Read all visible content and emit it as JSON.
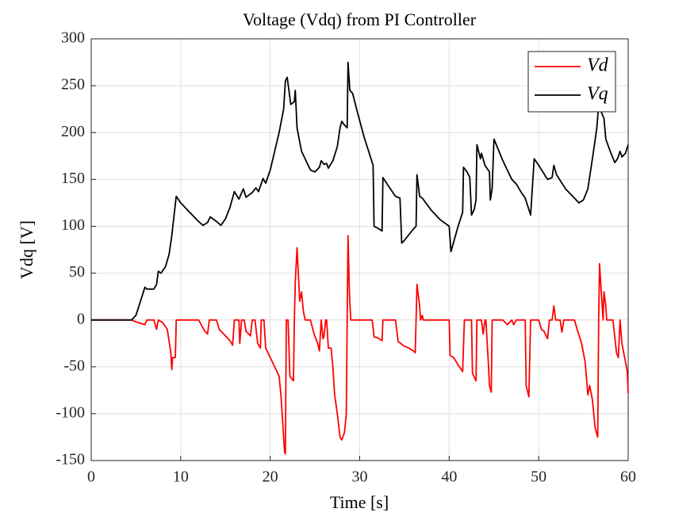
{
  "chart_data": {
    "type": "line",
    "title": "Voltage (Vdq) from PI Controller",
    "xlabel": "Time [s]",
    "ylabel": "Vdq [V]",
    "xlim": [
      0,
      60
    ],
    "xticks": [
      0,
      10,
      20,
      30,
      40,
      50,
      60
    ],
    "ylim": [
      -150,
      300
    ],
    "yticks": [
      -150,
      -100,
      -50,
      0,
      50,
      100,
      150,
      200,
      250,
      300
    ],
    "grid": true,
    "legend": "top-right",
    "series": [
      {
        "name": "Vd",
        "color": "#ff0000",
        "x": [
          0,
          4.5,
          5,
          6,
          6.2,
          7,
          7.3,
          7.5,
          8,
          8.5,
          8.9,
          9,
          9.1,
          9.4,
          9.5,
          12,
          12.7,
          13,
          13.2,
          14,
          14.3,
          15,
          15.5,
          15.8,
          16,
          16.5,
          16.6,
          16.8,
          17.1,
          17.3,
          17.8,
          18,
          18.3,
          18.6,
          18.9,
          19,
          19.3,
          19.5,
          20,
          20.5,
          21,
          21.2,
          21.4,
          21.6,
          21.7,
          21.8,
          22,
          22.2,
          22.6,
          22.7,
          22.8,
          23,
          23.3,
          23.5,
          23.7,
          23.9,
          24.5,
          24.9,
          25.3,
          25.5,
          25.7,
          25.9,
          26,
          26.2,
          26.3,
          26.5,
          26.8,
          27,
          27.2,
          27.5,
          27.8,
          28,
          28.3,
          28.5,
          28.6,
          28.7,
          28.85,
          29,
          31.4,
          31.6,
          32,
          32.5,
          32.6,
          34,
          34.3,
          35,
          35.5,
          36,
          36.2,
          36.3,
          36.4,
          36.7,
          36.8,
          37,
          37.1,
          40,
          40.1,
          40.5,
          41,
          41.5,
          41.7,
          42.5,
          42.6,
          43,
          43.1,
          43.6,
          43.8,
          44,
          44.1,
          44.4,
          44.5,
          44.7,
          44.8,
          46,
          46.5,
          47,
          47.2,
          47.5,
          48.5,
          48.6,
          48.9,
          49.1,
          50,
          50.3,
          50.6,
          51,
          51.2,
          51.5,
          51.7,
          51.9,
          52.4,
          52.6,
          52.8,
          54,
          54.3,
          54.8,
          55.2,
          55.5,
          55.7,
          56,
          56.3,
          56.6,
          56.7,
          56.8,
          57,
          57.2,
          57.3,
          57.5,
          57.6,
          58.3,
          58.7,
          58.9,
          59.1,
          59.3,
          59.6,
          59.9,
          60
        ],
        "values": [
          0,
          0,
          -2,
          -5,
          0,
          0,
          -10,
          0,
          -3,
          -10,
          -35,
          -53,
          -40,
          -40,
          0,
          0,
          -12,
          -15,
          0,
          0,
          -10,
          -17,
          -22,
          -27,
          0,
          0,
          -25,
          0,
          0,
          -12,
          -17,
          0,
          0,
          -25,
          -30,
          0,
          0,
          -30,
          -40,
          -50,
          -60,
          -80,
          -110,
          -140,
          -143,
          0,
          0,
          -60,
          -65,
          0,
          40,
          77,
          20,
          30,
          10,
          0,
          0,
          -15,
          -25,
          -33,
          0,
          -20,
          -18,
          0,
          0,
          -30,
          -30,
          -50,
          -80,
          -100,
          -125,
          -128,
          -120,
          -100,
          0,
          90,
          30,
          0,
          0,
          -18,
          -19,
          -22,
          0,
          0,
          -23,
          -28,
          -30,
          -33,
          -35,
          0,
          38,
          15,
          0,
          5,
          0,
          0,
          -38,
          -40,
          -48,
          -55,
          0,
          0,
          -57,
          -65,
          0,
          0,
          -15,
          0,
          0,
          -50,
          -70,
          -77,
          0,
          0,
          -5,
          0,
          -5,
          0,
          0,
          -70,
          -82,
          0,
          0,
          -10,
          -12,
          -20,
          0,
          0,
          15,
          0,
          0,
          -13,
          0,
          0,
          -10,
          -25,
          -45,
          -80,
          -70,
          -85,
          -115,
          -125,
          0,
          60,
          30,
          0,
          30,
          15,
          0,
          0,
          -35,
          -40,
          0,
          -25,
          -40,
          -55,
          -78
        ]
      },
      {
        "name": "Vq",
        "color": "#000000",
        "x": [
          0,
          4.5,
          5,
          5.5,
          6,
          6.2,
          7,
          7.3,
          7.5,
          7.8,
          8.3,
          8.7,
          9,
          9.3,
          9.5,
          10,
          11,
          12,
          12.5,
          13,
          13.3,
          14,
          14.5,
          15,
          15.5,
          16,
          16.5,
          17,
          17.3,
          18,
          18.4,
          18.7,
          19.2,
          19.5,
          20,
          20.5,
          21,
          21.5,
          21.7,
          21.9,
          22.3,
          22.7,
          22.8,
          23,
          23.5,
          24,
          24.5,
          25,
          25.5,
          25.7,
          26,
          26.3,
          26.5,
          27,
          27.5,
          27.8,
          28,
          28.3,
          28.6,
          28.7,
          28.9,
          29.2,
          29.8,
          30.5,
          31,
          31.5,
          31.6,
          32,
          32.5,
          32.6,
          33,
          34,
          34.5,
          34.7,
          35,
          36,
          36.3,
          36.4,
          36.7,
          37,
          38,
          39,
          40,
          40.2,
          41,
          41.5,
          41.6,
          42,
          42.3,
          42.5,
          42.8,
          43,
          43.1,
          43.5,
          43.6,
          44,
          44.5,
          44.6,
          44.8,
          45,
          46,
          47,
          47.5,
          48,
          48.5,
          49,
          49.1,
          49.5,
          50,
          51,
          51.5,
          51.7,
          52,
          53,
          54,
          54.5,
          55,
          55.5,
          56,
          56.5,
          56.8,
          57,
          57.3,
          57.5,
          58,
          58.5,
          58.8,
          59.1,
          59.3,
          59.7,
          60
        ],
        "values": [
          0,
          0,
          5,
          20,
          35,
          33,
          33,
          38,
          52,
          50,
          57,
          70,
          90,
          115,
          132,
          125,
          115,
          105,
          101,
          104,
          110,
          105,
          101,
          108,
          120,
          137,
          129,
          140,
          131,
          136,
          141,
          137,
          151,
          146,
          160,
          180,
          200,
          225,
          255,
          259,
          230,
          233,
          245,
          205,
          180,
          170,
          160,
          158,
          163,
          170,
          166,
          167,
          162,
          170,
          185,
          205,
          212,
          208,
          205,
          275,
          245,
          242,
          220,
          195,
          180,
          165,
          100,
          98,
          95,
          152,
          146,
          132,
          130,
          82,
          85,
          97,
          100,
          155,
          132,
          130,
          117,
          107,
          100,
          73,
          100,
          115,
          163,
          158,
          152,
          112,
          118,
          128,
          187,
          172,
          178,
          165,
          158,
          128,
          140,
          193,
          170,
          150,
          145,
          137,
          130,
          115,
          112,
          172,
          165,
          150,
          152,
          165,
          155,
          140,
          130,
          125,
          128,
          140,
          172,
          205,
          242,
          222,
          215,
          193,
          180,
          168,
          172,
          180,
          174,
          178,
          187
        ]
      }
    ]
  }
}
